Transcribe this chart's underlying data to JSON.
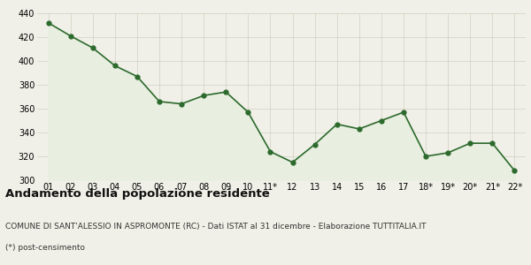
{
  "x_labels": [
    "01",
    "02",
    "03",
    "04",
    "05",
    "06",
    "07",
    "08",
    "09",
    "10",
    "11*",
    "12",
    "13",
    "14",
    "15",
    "16",
    "17",
    "18*",
    "19*",
    "20*",
    "21*",
    "22*"
  ],
  "y_values": [
    432,
    421,
    411,
    396,
    387,
    366,
    364,
    371,
    374,
    357,
    324,
    315,
    330,
    347,
    343,
    350,
    357,
    320,
    323,
    331,
    331,
    308
  ],
  "line_color": "#2d6a2d",
  "fill_color": "#e8efe0",
  "marker": "o",
  "marker_size": 3.5,
  "ylim": [
    300,
    440
  ],
  "yticks": [
    300,
    320,
    340,
    360,
    380,
    400,
    420,
    440
  ],
  "title": "Andamento della popolazione residente",
  "subtitle": "COMUNE DI SANT'ALESSIO IN ASPROMONTE (RC) - Dati ISTAT al 31 dicembre - Elaborazione TUTTITALIA.IT",
  "footnote": "(*) post-censimento",
  "bg_color": "#f0f0e8",
  "plot_bg_color": "#f0f0e8",
  "grid_color": "#d0d0c0",
  "title_fontsize": 9.5,
  "subtitle_fontsize": 6.5,
  "footnote_fontsize": 6.5,
  "tick_fontsize": 7
}
